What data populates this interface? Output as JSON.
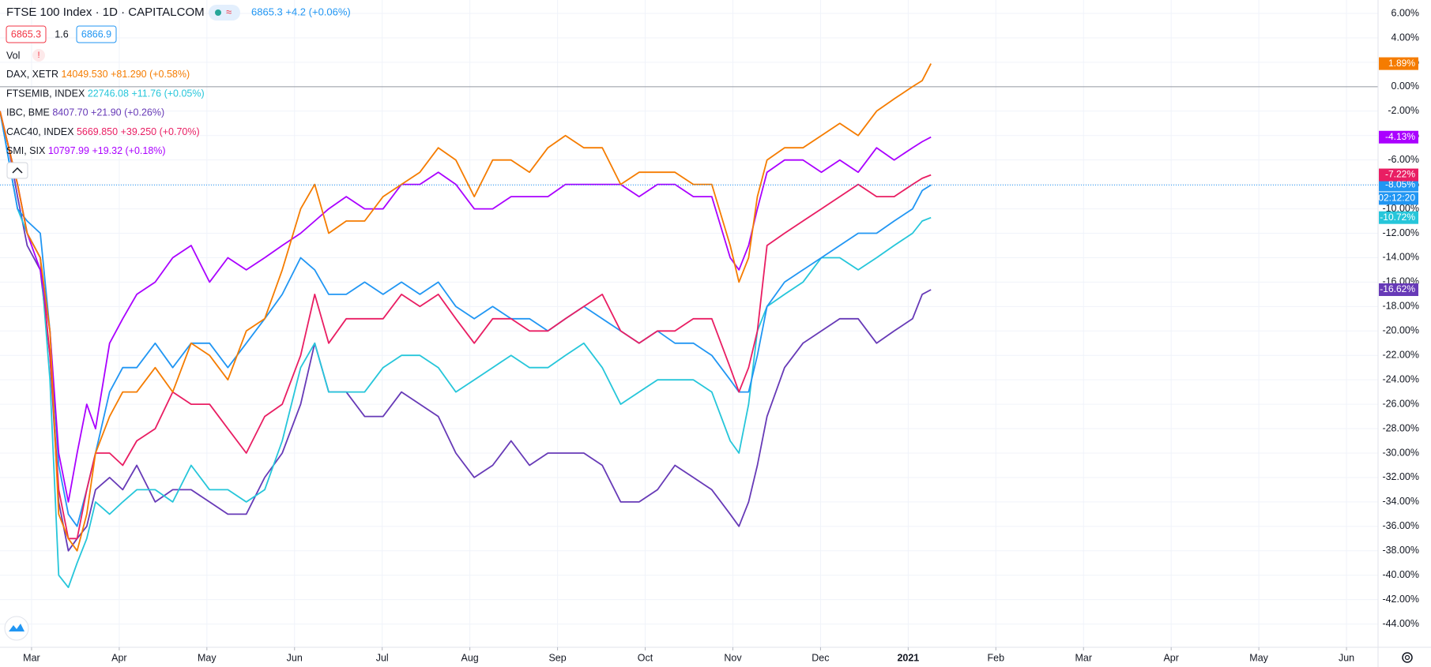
{
  "header": {
    "interval": "· 1D · CAPITALCOM",
    "quote": "6865.3 +4.2 (+0.06%)",
    "bid": "6865.3",
    "spread": "1.6",
    "ask": "6866.9",
    "vol": "Vol",
    "countdown": "02:12:20"
  },
  "chart_data": {
    "type": "line",
    "grid": true,
    "x": [
      2.64,
      2.74,
      2.84,
      2.95,
      3.1,
      3.21,
      3.31,
      3.42,
      3.52,
      3.63,
      3.73,
      3.89,
      4.04,
      4.2,
      4.41,
      4.61,
      4.82,
      5.03,
      5.24,
      5.45,
      5.66,
      5.86,
      6.07,
      6.23,
      6.39,
      6.59,
      6.8,
      7.01,
      7.22,
      7.43,
      7.64,
      7.84,
      8.05,
      8.26,
      8.47,
      8.68,
      8.89,
      9.09,
      9.3,
      9.51,
      9.72,
      9.93,
      10.14,
      10.34,
      10.55,
      10.76,
      10.97,
      11.07,
      11.18,
      11.28,
      11.39,
      11.59,
      11.8,
      12.01,
      12.22,
      12.43,
      12.64,
      12.84,
      13.05,
      13.16,
      13.26
    ],
    "xlim": [
      2.64,
      18.36
    ],
    "xticks": [
      {
        "value": 3,
        "label": "Mar"
      },
      {
        "value": 4,
        "label": "Apr"
      },
      {
        "value": 5,
        "label": "May"
      },
      {
        "value": 6,
        "label": "Jun"
      },
      {
        "value": 7,
        "label": "Jul"
      },
      {
        "value": 8,
        "label": "Aug"
      },
      {
        "value": 9,
        "label": "Sep"
      },
      {
        "value": 10,
        "label": "Oct"
      },
      {
        "value": 11,
        "label": "Nov"
      },
      {
        "value": 12,
        "label": "Dec"
      },
      {
        "value": 13,
        "label": "2021"
      },
      {
        "value": 14,
        "label": "Feb"
      },
      {
        "value": 15,
        "label": "Mar"
      },
      {
        "value": 16,
        "label": "Apr"
      },
      {
        "value": 17,
        "label": "May"
      },
      {
        "value": 18,
        "label": "Jun"
      }
    ],
    "ylim": [
      -45.9,
      7.1
    ],
    "yticks": [
      {
        "value": 6,
        "label": "6.00%"
      },
      {
        "value": 4,
        "label": "4.00%"
      },
      {
        "value": 2,
        "label": "2.00%"
      },
      {
        "value": 0,
        "label": "0.00%"
      },
      {
        "value": -2,
        "label": "-2.00%"
      },
      {
        "value": -4,
        "label": "-4.00%"
      },
      {
        "value": -6,
        "label": "-6.00%"
      },
      {
        "value": -8,
        "label": "-8.00%"
      },
      {
        "value": -10,
        "label": "-10.00%"
      },
      {
        "value": -12,
        "label": "-12.00%"
      },
      {
        "value": -14,
        "label": "-14.00%"
      },
      {
        "value": -16,
        "label": "-16.00%"
      },
      {
        "value": -18,
        "label": "-18.00%"
      },
      {
        "value": -20,
        "label": "-20.00%"
      },
      {
        "value": -22,
        "label": "-22.00%"
      },
      {
        "value": -24,
        "label": "-24.00%"
      },
      {
        "value": -26,
        "label": "-26.00%"
      },
      {
        "value": -28,
        "label": "-28.00%"
      },
      {
        "value": -30,
        "label": "-30.00%"
      },
      {
        "value": -32,
        "label": "-32.00%"
      },
      {
        "value": -34,
        "label": "-34.00%"
      },
      {
        "value": -36,
        "label": "-36.00%"
      },
      {
        "value": -38,
        "label": "-38.00%"
      },
      {
        "value": -40,
        "label": "-40.00%"
      },
      {
        "value": -42,
        "label": "-42.00%"
      },
      {
        "value": -44,
        "label": "-44.00%"
      }
    ],
    "series": [
      {
        "name": "FTSE 100 Index",
        "color": "#2196f3",
        "end_label": {
          "value": -8.05,
          "label": "-8.05%"
        },
        "values": [
          -2,
          -6,
          -10,
          -11,
          -12,
          -20,
          -31,
          -35,
          -36,
          -33,
          -30,
          -25,
          -23,
          -23,
          -21,
          -23,
          -21,
          -21,
          -23,
          -21,
          -19,
          -17,
          -14,
          -15,
          -17,
          -17,
          -16,
          -17,
          -16,
          -17,
          -16,
          -18,
          -19,
          -18,
          -19,
          -19,
          -20,
          -19,
          -18,
          -19,
          -20,
          -21,
          -20,
          -21,
          -21,
          -22,
          -24,
          -25,
          -25,
          -22,
          -18,
          -16,
          -15,
          -14,
          -13,
          -12,
          -12,
          -11,
          -10,
          -8.5,
          -8.05
        ]
      },
      {
        "name": "DAX, XETR",
        "price": "14049.530",
        "change": "+81.290 (+0.58%)",
        "color": "#f57c00",
        "end_label": {
          "value": 1.89,
          "label": "1.89%"
        },
        "values": [
          -2,
          -5,
          -8,
          -12,
          -14,
          -20,
          -35,
          -37,
          -38,
          -35,
          -30,
          -27,
          -25,
          -25,
          -23,
          -25,
          -21,
          -22,
          -24,
          -20,
          -19,
          -15,
          -10,
          -8,
          -12,
          -11,
          -11,
          -9,
          -8,
          -7,
          -5,
          -6,
          -9,
          -6,
          -6,
          -7,
          -5,
          -4,
          -5,
          -5,
          -8,
          -7,
          -7,
          -7,
          -8,
          -8,
          -13,
          -16,
          -14,
          -9,
          -6,
          -5,
          -5,
          -4,
          -3,
          -4,
          -2,
          -1,
          0,
          0.5,
          1.89
        ]
      },
      {
        "name": "FTSEMIB, INDEX",
        "price": "22746.08",
        "change": "+11.76 (+0.05%)",
        "color": "#26c6da",
        "end_label": {
          "value": -10.72,
          "label": "-10.72%"
        },
        "values": [
          -2,
          -6,
          -10,
          -12,
          -14,
          -24,
          -40,
          -41,
          -39,
          -37,
          -34,
          -35,
          -34,
          -33,
          -33,
          -34,
          -31,
          -33,
          -33,
          -34,
          -33,
          -29,
          -23,
          -21,
          -25,
          -25,
          -25,
          -23,
          -22,
          -22,
          -23,
          -25,
          -24,
          -23,
          -22,
          -23,
          -23,
          -22,
          -21,
          -23,
          -26,
          -25,
          -24,
          -24,
          -24,
          -25,
          -29,
          -30,
          -26,
          -20,
          -18,
          -17,
          -16,
          -14,
          -14,
          -15,
          -14,
          -13,
          -12,
          -11,
          -10.72
        ]
      },
      {
        "name": "IBC, BME",
        "price": "8407.70",
        "change": "+21.90 (+0.26%)",
        "color": "#673ab7",
        "end_label": {
          "value": -16.62,
          "label": "-16.62%"
        },
        "values": [
          -2,
          -5,
          -9,
          -13,
          -15,
          -22,
          -34,
          -38,
          -37,
          -36,
          -33,
          -32,
          -33,
          -31,
          -34,
          -33,
          -33,
          -34,
          -35,
          -35,
          -32,
          -30,
          -26,
          -21,
          -25,
          -25,
          -27,
          -27,
          -25,
          -26,
          -27,
          -30,
          -32,
          -31,
          -29,
          -31,
          -30,
          -30,
          -30,
          -31,
          -34,
          -34,
          -33,
          -31,
          -32,
          -33,
          -35,
          -36,
          -34,
          -31,
          -27,
          -23,
          -21,
          -20,
          -19,
          -19,
          -21,
          -20,
          -19,
          -17,
          -16.62
        ]
      },
      {
        "name": "CAC40, INDEX",
        "price": "5669.850",
        "change": "+39.250 (+0.70%)",
        "color": "#e91e63",
        "end_label": {
          "value": -7.22,
          "label": "-7.22%"
        },
        "values": [
          -2,
          -5,
          -8,
          -12,
          -14,
          -22,
          -33,
          -37,
          -37,
          -33,
          -30,
          -30,
          -31,
          -29,
          -28,
          -25,
          -26,
          -26,
          -28,
          -30,
          -27,
          -26,
          -22,
          -17,
          -21,
          -19,
          -19,
          -19,
          -17,
          -18,
          -17,
          -19,
          -21,
          -19,
          -19,
          -20,
          -20,
          -19,
          -18,
          -17,
          -20,
          -21,
          -20,
          -20,
          -19,
          -19,
          -23,
          -25,
          -23,
          -20,
          -13,
          -12,
          -11,
          -10,
          -9,
          -8,
          -9,
          -9,
          -8,
          -7.5,
          -7.22
        ]
      },
      {
        "name": "SMI, SIX",
        "price": "10797.99",
        "change": "+19.32 (+0.18%)",
        "color": "#aa00ff",
        "end_label": {
          "value": -4.13,
          "label": "-4.13%"
        },
        "values": [
          -2,
          -5,
          -8,
          -12,
          -15,
          -20,
          -30,
          -34,
          -30,
          -26,
          -28,
          -21,
          -19,
          -17,
          -16,
          -14,
          -13,
          -16,
          -14,
          -15,
          -14,
          -13,
          -12,
          -11,
          -10,
          -9,
          -10,
          -10,
          -8,
          -8,
          -7,
          -8,
          -10,
          -10,
          -9,
          -9,
          -9,
          -8,
          -8,
          -8,
          -8,
          -9,
          -8,
          -8,
          -9,
          -9,
          -14,
          -15,
          -13,
          -10,
          -7,
          -6,
          -6,
          -7,
          -6,
          -7,
          -5,
          -6,
          -5,
          -4.5,
          -4.13
        ]
      }
    ]
  }
}
